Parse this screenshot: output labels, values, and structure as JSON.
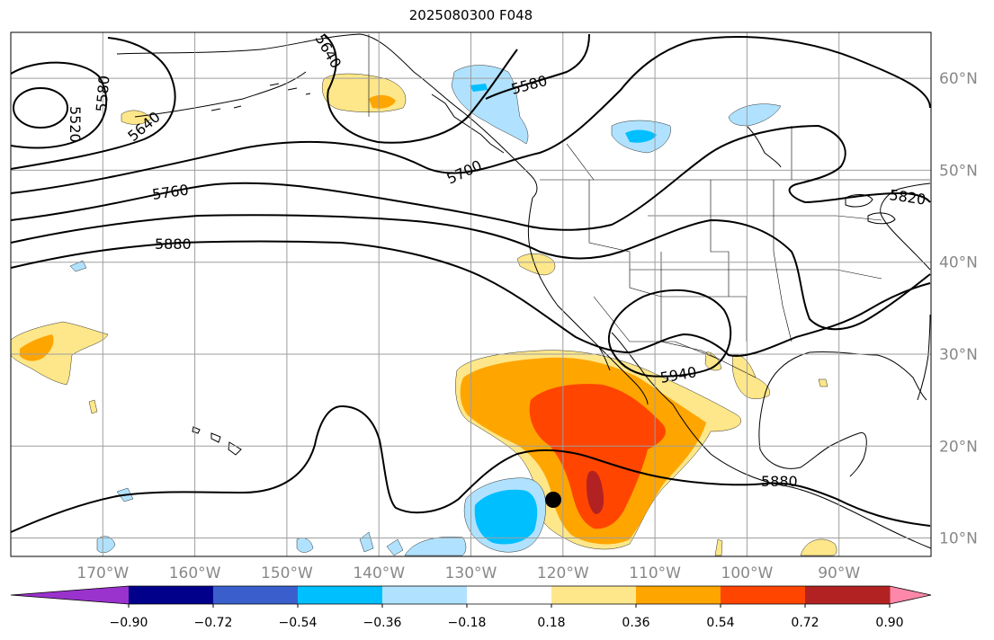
{
  "title": "2025080300 F048",
  "map": {
    "lon_range": [
      -180,
      -80
    ],
    "lat_range": [
      8,
      65
    ],
    "gridline_color": "#9e9e9e",
    "lon_ticks": [
      "170°W",
      "160°W",
      "150°W",
      "140°W",
      "130°W",
      "120°W",
      "110°W",
      "100°W",
      "90°W"
    ],
    "lat_ticks": [
      "10°N",
      "20°N",
      "30°N",
      "40°N",
      "50°N",
      "60°N"
    ],
    "tick_label_color": "#888888",
    "marker": {
      "type": "black-dot",
      "lon": -121,
      "lat": 14
    }
  },
  "contours": {
    "field": "geopotential height",
    "labels": [
      "5520",
      "5580",
      "5640",
      "5580",
      "5700",
      "5760",
      "5880",
      "5940",
      "5820",
      "5880",
      "5640"
    ]
  },
  "colorbar": {
    "colors": [
      "#9a32cd",
      "#00008b",
      "#3a5fcd",
      "#00bfff",
      "#b0e2ff",
      "#ffffff",
      "#fde78a",
      "#ffa500",
      "#ff4500",
      "#b22222",
      "#ff88aa"
    ],
    "tick_labels": [
      "−0.90",
      "−0.72",
      "−0.54",
      "−0.36",
      "−0.18",
      "0.18",
      "0.36",
      "0.54",
      "0.72",
      "0.90"
    ]
  }
}
